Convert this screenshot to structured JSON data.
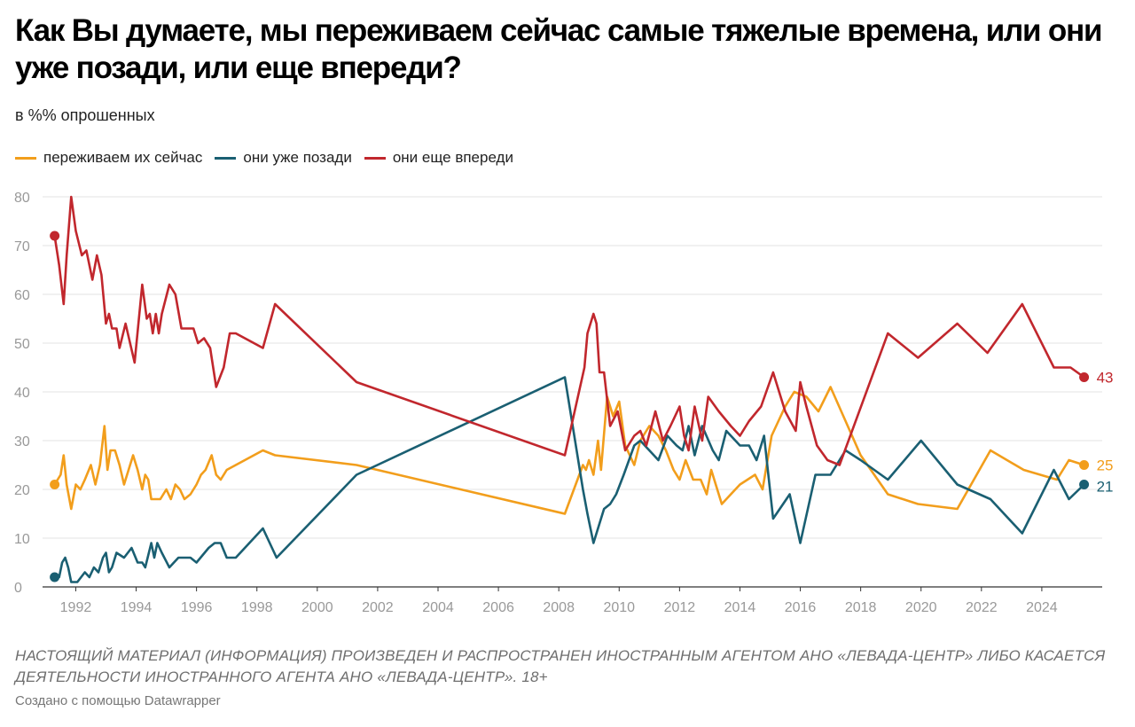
{
  "header": {
    "title": "Как Вы думаете, мы переживаем сейчас самые тяжелые времена, или они уже позади, или еще впереди?",
    "subtitle": "в %% опрошенных"
  },
  "footer": {
    "note": "НАСТОЯЩИЙ МАТЕРИАЛ (ИНФОРМАЦИЯ) ПРОИЗВЕДЕН И РАСПРОСТРАНЕН ИНОСТРАННЫМ АГЕНТОМ АНО «ЛЕВАДА-ЦЕНТР» ЛИБО КАСАЕТСЯ ДЕЯТЕЛЬНОСТИ ИНОСТРАННОГО АГЕНТА АНО «ЛЕВАДА-ЦЕНТР». 18+",
    "credit": "Создано с помощью Datawrapper"
  },
  "chart_data": {
    "type": "line",
    "title": "Как Вы думаете, мы переживаем сейчас самые тяжелые времена, или они уже позади, или еще впереди?",
    "subtitle": "в %% опрошенных",
    "xlabel": "",
    "ylabel": "",
    "xlim": [
      1990.9,
      2026.0
    ],
    "ylim": [
      0,
      80
    ],
    "x_ticks": [
      1992,
      1994,
      1996,
      1998,
      2000,
      2002,
      2004,
      2006,
      2008,
      2010,
      2012,
      2014,
      2016,
      2018,
      2020,
      2022,
      2024
    ],
    "y_ticks": [
      0,
      10,
      20,
      30,
      40,
      50,
      60,
      70,
      80
    ],
    "grid": true,
    "legend": "top-left",
    "series": [
      {
        "name": "переживаем их сейчас",
        "color": "#f29e1c",
        "end_label": "25",
        "points": [
          [
            1991.3,
            21
          ],
          [
            1991.5,
            23
          ],
          [
            1991.6,
            27
          ],
          [
            1991.7,
            21
          ],
          [
            1991.85,
            16
          ],
          [
            1992.0,
            21
          ],
          [
            1992.15,
            20
          ],
          [
            1992.3,
            22
          ],
          [
            1992.5,
            25
          ],
          [
            1992.65,
            21
          ],
          [
            1992.8,
            25
          ],
          [
            1992.95,
            33
          ],
          [
            1993.05,
            24
          ],
          [
            1993.15,
            28
          ],
          [
            1993.3,
            28
          ],
          [
            1993.45,
            25
          ],
          [
            1993.6,
            21
          ],
          [
            1993.75,
            24
          ],
          [
            1993.9,
            27
          ],
          [
            1994.05,
            24
          ],
          [
            1994.2,
            20
          ],
          [
            1994.3,
            23
          ],
          [
            1994.4,
            22
          ],
          [
            1994.5,
            18
          ],
          [
            1994.65,
            18
          ],
          [
            1994.8,
            18
          ],
          [
            1995.0,
            20
          ],
          [
            1995.15,
            18
          ],
          [
            1995.3,
            21
          ],
          [
            1995.45,
            20
          ],
          [
            1995.6,
            18
          ],
          [
            1995.8,
            19
          ],
          [
            1996.0,
            21
          ],
          [
            1996.15,
            23
          ],
          [
            1996.3,
            24
          ],
          [
            1996.5,
            27
          ],
          [
            1996.65,
            23
          ],
          [
            1996.8,
            22
          ],
          [
            1997.0,
            24
          ],
          [
            1998.2,
            28
          ],
          [
            1998.6,
            27
          ],
          [
            2001.3,
            25
          ],
          [
            2008.2,
            15
          ],
          [
            2008.8,
            25
          ],
          [
            2008.9,
            24
          ],
          [
            2009.0,
            26
          ],
          [
            2009.15,
            23
          ],
          [
            2009.3,
            30
          ],
          [
            2009.4,
            24
          ],
          [
            2009.6,
            39
          ],
          [
            2009.8,
            35
          ],
          [
            2010.0,
            38
          ],
          [
            2010.2,
            29
          ],
          [
            2010.5,
            25
          ],
          [
            2010.7,
            30
          ],
          [
            2011.0,
            33
          ],
          [
            2011.3,
            31
          ],
          [
            2011.55,
            28
          ],
          [
            2011.8,
            24
          ],
          [
            2012.0,
            22
          ],
          [
            2012.2,
            26
          ],
          [
            2012.45,
            22
          ],
          [
            2012.7,
            22
          ],
          [
            2012.9,
            19
          ],
          [
            2013.05,
            24
          ],
          [
            2013.4,
            17
          ],
          [
            2013.7,
            19
          ],
          [
            2014.0,
            21
          ],
          [
            2014.5,
            23
          ],
          [
            2014.75,
            20
          ],
          [
            2015.05,
            31
          ],
          [
            2015.5,
            37
          ],
          [
            2015.8,
            40
          ],
          [
            2016.2,
            39
          ],
          [
            2016.6,
            36
          ],
          [
            2017.0,
            41
          ],
          [
            2017.5,
            34
          ],
          [
            2018.0,
            27
          ],
          [
            2018.9,
            19
          ],
          [
            2019.9,
            17
          ],
          [
            2021.2,
            16
          ],
          [
            2022.3,
            28
          ],
          [
            2023.4,
            24
          ],
          [
            2024.5,
            22
          ],
          [
            2024.9,
            26
          ],
          [
            2025.4,
            25
          ]
        ]
      },
      {
        "name": "они уже позади",
        "color": "#1a5f72",
        "end_label": "21",
        "points": [
          [
            1991.3,
            2
          ],
          [
            1991.45,
            2
          ],
          [
            1991.55,
            5
          ],
          [
            1991.65,
            6
          ],
          [
            1991.75,
            4
          ],
          [
            1991.85,
            1
          ],
          [
            1992.05,
            1
          ],
          [
            1992.3,
            3
          ],
          [
            1992.45,
            2
          ],
          [
            1992.6,
            4
          ],
          [
            1992.75,
            3
          ],
          [
            1992.9,
            6
          ],
          [
            1993.0,
            7
          ],
          [
            1993.1,
            3
          ],
          [
            1993.2,
            4
          ],
          [
            1993.35,
            7
          ],
          [
            1993.6,
            6
          ],
          [
            1993.85,
            8
          ],
          [
            1994.05,
            5
          ],
          [
            1994.2,
            5
          ],
          [
            1994.3,
            4
          ],
          [
            1994.5,
            9
          ],
          [
            1994.6,
            6
          ],
          [
            1994.7,
            9
          ],
          [
            1994.85,
            7
          ],
          [
            1995.1,
            4
          ],
          [
            1995.4,
            6
          ],
          [
            1995.8,
            6
          ],
          [
            1996.0,
            5
          ],
          [
            1996.4,
            8
          ],
          [
            1996.6,
            9
          ],
          [
            1996.8,
            9
          ],
          [
            1997.0,
            6
          ],
          [
            1997.3,
            6
          ],
          [
            1998.2,
            12
          ],
          [
            1998.65,
            6
          ],
          [
            2001.3,
            23
          ],
          [
            2008.2,
            43
          ],
          [
            2008.8,
            20
          ],
          [
            2008.95,
            15
          ],
          [
            2009.15,
            9
          ],
          [
            2009.5,
            16
          ],
          [
            2009.7,
            17
          ],
          [
            2009.9,
            19
          ],
          [
            2010.15,
            23
          ],
          [
            2010.5,
            29
          ],
          [
            2010.7,
            30
          ],
          [
            2011.0,
            28
          ],
          [
            2011.3,
            26
          ],
          [
            2011.6,
            31
          ],
          [
            2011.9,
            29
          ],
          [
            2012.1,
            28
          ],
          [
            2012.3,
            33
          ],
          [
            2012.5,
            27
          ],
          [
            2012.75,
            33
          ],
          [
            2013.1,
            28
          ],
          [
            2013.3,
            26
          ],
          [
            2013.55,
            32
          ],
          [
            2014.0,
            29
          ],
          [
            2014.3,
            29
          ],
          [
            2014.55,
            26
          ],
          [
            2014.8,
            31
          ],
          [
            2015.1,
            14
          ],
          [
            2015.65,
            19
          ],
          [
            2016.0,
            9
          ],
          [
            2016.5,
            23
          ],
          [
            2017.0,
            23
          ],
          [
            2017.5,
            28
          ],
          [
            2018.0,
            26
          ],
          [
            2018.9,
            22
          ],
          [
            2020.0,
            30
          ],
          [
            2021.2,
            21
          ],
          [
            2022.3,
            18
          ],
          [
            2023.35,
            11
          ],
          [
            2024.4,
            24
          ],
          [
            2024.9,
            18
          ],
          [
            2025.4,
            21
          ]
        ]
      },
      {
        "name": "они еще впереди",
        "color": "#c1272d",
        "end_label": "43",
        "points": [
          [
            1991.3,
            72
          ],
          [
            1991.45,
            66
          ],
          [
            1991.6,
            58
          ],
          [
            1991.7,
            68
          ],
          [
            1991.85,
            80
          ],
          [
            1992.0,
            73
          ],
          [
            1992.2,
            68
          ],
          [
            1992.35,
            69
          ],
          [
            1992.55,
            63
          ],
          [
            1992.7,
            68
          ],
          [
            1992.85,
            64
          ],
          [
            1993.0,
            54
          ],
          [
            1993.1,
            56
          ],
          [
            1993.2,
            53
          ],
          [
            1993.35,
            53
          ],
          [
            1993.45,
            49
          ],
          [
            1993.65,
            54
          ],
          [
            1993.95,
            46
          ],
          [
            1994.2,
            62
          ],
          [
            1994.35,
            55
          ],
          [
            1994.45,
            56
          ],
          [
            1994.55,
            52
          ],
          [
            1994.65,
            56
          ],
          [
            1994.75,
            52
          ],
          [
            1994.85,
            56
          ],
          [
            1995.1,
            62
          ],
          [
            1995.3,
            60
          ],
          [
            1995.5,
            53
          ],
          [
            1995.75,
            53
          ],
          [
            1995.9,
            53
          ],
          [
            1996.05,
            50
          ],
          [
            1996.25,
            51
          ],
          [
            1996.45,
            49
          ],
          [
            1996.65,
            41
          ],
          [
            1996.9,
            45
          ],
          [
            1997.1,
            52
          ],
          [
            1997.3,
            52
          ],
          [
            1998.2,
            49
          ],
          [
            1998.6,
            58
          ],
          [
            2001.3,
            42
          ],
          [
            2008.2,
            27
          ],
          [
            2008.85,
            45
          ],
          [
            2008.95,
            52
          ],
          [
            2009.15,
            56
          ],
          [
            2009.25,
            54
          ],
          [
            2009.35,
            44
          ],
          [
            2009.5,
            44
          ],
          [
            2009.7,
            33
          ],
          [
            2009.95,
            36
          ],
          [
            2010.2,
            28
          ],
          [
            2010.5,
            31
          ],
          [
            2010.7,
            32
          ],
          [
            2010.9,
            29
          ],
          [
            2011.2,
            36
          ],
          [
            2011.45,
            30
          ],
          [
            2011.7,
            33
          ],
          [
            2012.0,
            37
          ],
          [
            2012.15,
            31
          ],
          [
            2012.3,
            28
          ],
          [
            2012.5,
            37
          ],
          [
            2012.75,
            30
          ],
          [
            2012.95,
            39
          ],
          [
            2013.3,
            36
          ],
          [
            2013.7,
            33
          ],
          [
            2014.0,
            31
          ],
          [
            2014.3,
            34
          ],
          [
            2014.7,
            37
          ],
          [
            2015.1,
            44
          ],
          [
            2015.5,
            36
          ],
          [
            2015.85,
            32
          ],
          [
            2016.0,
            42
          ],
          [
            2016.2,
            37
          ],
          [
            2016.55,
            29
          ],
          [
            2016.9,
            26
          ],
          [
            2017.3,
            25
          ],
          [
            2018.9,
            52
          ],
          [
            2019.9,
            47
          ],
          [
            2021.2,
            54
          ],
          [
            2022.2,
            48
          ],
          [
            2023.35,
            58
          ],
          [
            2024.4,
            45
          ],
          [
            2024.95,
            45
          ],
          [
            2025.4,
            43
          ]
        ]
      }
    ]
  }
}
